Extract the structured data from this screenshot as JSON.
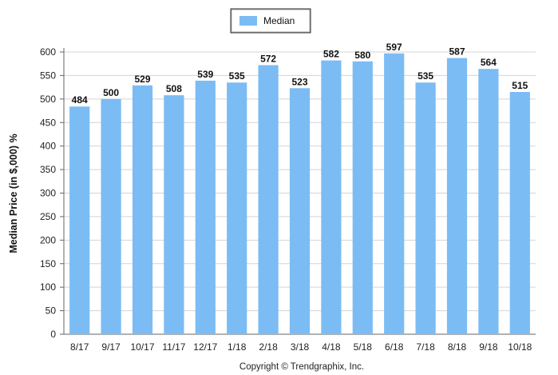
{
  "chart_data": {
    "type": "bar",
    "categories": [
      "8/17",
      "9/17",
      "10/17",
      "11/17",
      "12/17",
      "1/18",
      "2/18",
      "3/18",
      "4/18",
      "5/18",
      "6/18",
      "7/18",
      "8/18",
      "9/18",
      "10/18"
    ],
    "series": [
      {
        "name": "Median",
        "values": [
          484,
          500,
          529,
          508,
          539,
          535,
          572,
          523,
          582,
          580,
          597,
          535,
          587,
          564,
          515
        ]
      }
    ],
    "ylabel": "Median Price (in $,000) %",
    "xlabel": "",
    "ylim": [
      0,
      600
    ],
    "yticks": [
      0,
      50,
      100,
      150,
      200,
      250,
      300,
      350,
      400,
      450,
      500,
      550,
      600
    ],
    "grid": true,
    "legend_position": "top-center",
    "bar_color": "#7cbcf4",
    "footer": "Copyright © Trendgraphix, Inc."
  }
}
